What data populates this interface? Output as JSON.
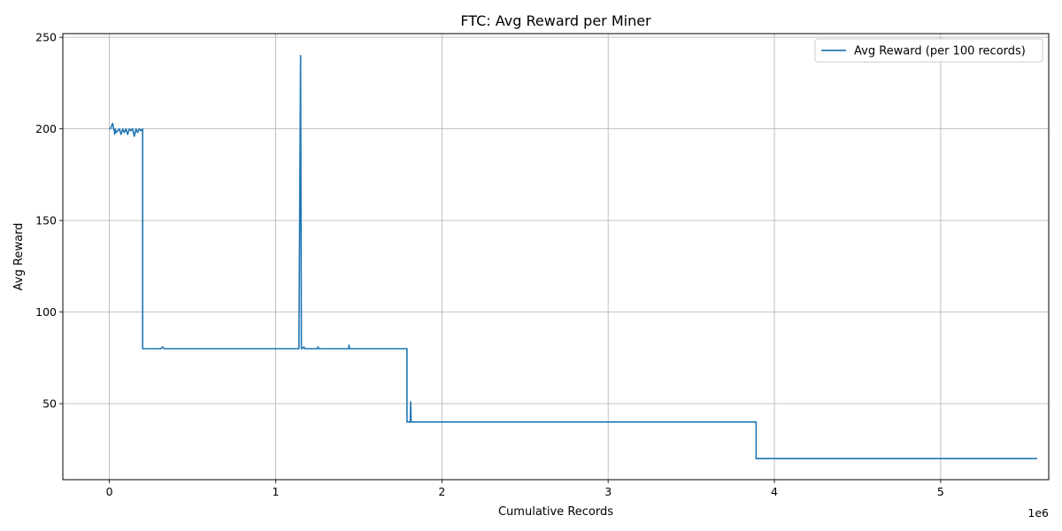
{
  "chart_data": {
    "type": "line",
    "title": "FTC: Avg Reward per Miner",
    "xlabel": "Cumulative Records",
    "ylabel": "Avg Reward",
    "x_offset_label": "1e6",
    "xlim": [
      -0.28,
      5.65
    ],
    "ylim": [
      8.5,
      252
    ],
    "x_ticks": [
      0,
      1,
      2,
      3,
      4,
      5
    ],
    "x_tick_labels": [
      "0",
      "1",
      "2",
      "3",
      "4",
      "5"
    ],
    "y_ticks": [
      50,
      100,
      150,
      200,
      250
    ],
    "y_tick_labels": [
      "50",
      "100",
      "150",
      "200",
      "250"
    ],
    "grid": true,
    "legend_position": "top-right",
    "series": [
      {
        "name": "Avg Reward (per 100 records)",
        "color": "#1f77b4",
        "x": [
          0,
          0.005,
          0.01,
          0.015,
          0.02,
          0.025,
          0.03,
          0.032,
          0.035,
          0.04,
          0.05,
          0.06,
          0.07,
          0.08,
          0.09,
          0.1,
          0.11,
          0.12,
          0.13,
          0.14,
          0.15,
          0.16,
          0.17,
          0.18,
          0.19,
          0.2,
          0.2,
          0.25,
          0.31,
          0.32,
          0.33,
          0.5,
          0.75,
          1.0,
          1.14,
          1.15,
          1.155,
          1.16,
          1.17,
          1.175,
          1.18,
          1.25,
          1.255,
          1.26,
          1.44,
          1.441,
          1.445,
          1.6,
          1.78,
          1.79,
          1.79,
          1.81,
          1.812,
          1.815,
          1.82,
          2.0,
          2.5,
          3.0,
          3.5,
          3.89,
          3.89,
          4.0,
          4.5,
          5.0,
          5.58
        ],
        "y": [
          200,
          200,
          201,
          202,
          203,
          200,
          199,
          197,
          200,
          198,
          199,
          200,
          197,
          200,
          198,
          200,
          197,
          200,
          199,
          200,
          196,
          200,
          198,
          200,
          199,
          200,
          80,
          80,
          80,
          81,
          80,
          80,
          80,
          80,
          80,
          240,
          80,
          80,
          81,
          80,
          80,
          80,
          81,
          80,
          80,
          82,
          80,
          80,
          80,
          80,
          40,
          40,
          51,
          40,
          40,
          40,
          40,
          40,
          40,
          40,
          20,
          20,
          20,
          20,
          20
        ]
      }
    ]
  }
}
